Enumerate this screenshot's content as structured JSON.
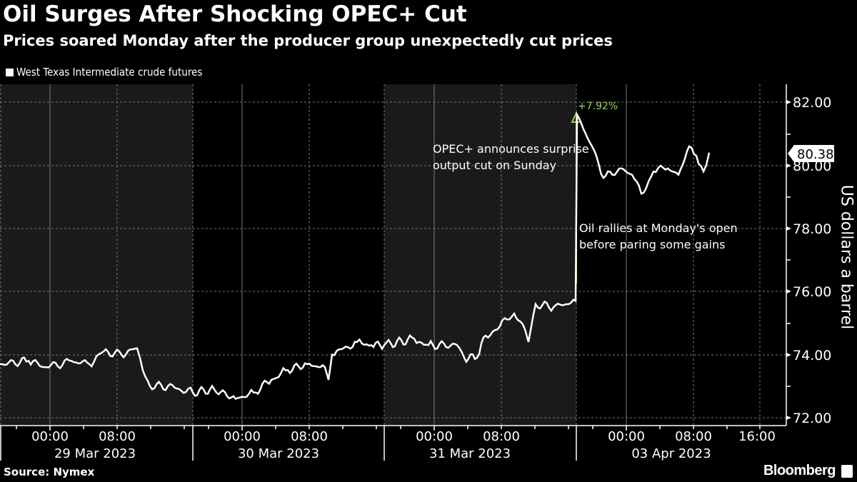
{
  "header": {
    "title": "Oil Surges After Shocking OPEC+ Cut",
    "subtitle": "Prices soared Monday after the producer group unexpectedly cut prices"
  },
  "legend": {
    "label": "West Texas Intermediate crude futures",
    "color": "#ffffff"
  },
  "footer": {
    "source": "Source: Nymex",
    "brand": "Bloomberg"
  },
  "annotations": {
    "opec": [
      "OPEC+ announces surprise",
      "output cut on Sunday"
    ],
    "rally": [
      "Oil rallies at Monday's open",
      "before paring some gains"
    ],
    "change": "+7.92%",
    "last_price": "80.38"
  },
  "colors": {
    "background": "#000000",
    "shaded_band": "#1a1a1a",
    "line": "#ffffff",
    "accent": "#9bd35a",
    "grid": "#666666"
  },
  "chart_data": {
    "type": "line",
    "title": "Oil Surges After Shocking OPEC+ Cut",
    "subtitle": "Prices soared Monday after the producer group unexpectedly cut prices",
    "xlabel": "",
    "ylabel": "US dollars a barrel",
    "ylim": [
      72,
      82
    ],
    "yticks": [
      "72.00",
      "74.00",
      "76.00",
      "78.00",
      "80.00",
      "82.00"
    ],
    "xticks": {
      "time_labels": [
        "00:00",
        "08:00",
        "00:00",
        "08:00",
        "00:00",
        "08:00",
        "00:00",
        "08:00",
        "16:00"
      ],
      "date_labels": [
        "29 Mar 2023",
        "30 Mar 2023",
        "31 Mar 2023",
        "03 Apr 2023"
      ]
    },
    "grid": true,
    "legend_position": "top-left",
    "series": [
      {
        "name": "West Texas Intermediate crude futures",
        "points": [
          {
            "t": "29 Mar 00:00-ish start",
            "x": 0,
            "y": 73.7
          },
          {
            "x": 40,
            "y": 73.8
          },
          {
            "x": 65,
            "y": 73.6
          },
          {
            "x": 100,
            "y": 73.8
          },
          {
            "x": 125,
            "y": 73.7
          },
          {
            "x": 145,
            "y": 74.1
          },
          {
            "x": 170,
            "y": 74.0
          },
          {
            "x": 192,
            "y": 74.2
          },
          {
            "x": 200,
            "y": 73.5
          },
          {
            "x": 210,
            "y": 73.0
          },
          {
            "x": 235,
            "y": 73.0
          },
          {
            "x": 270,
            "y": 72.8
          },
          {
            "x": 300,
            "y": 72.9
          },
          {
            "x": 330,
            "y": 72.6
          },
          {
            "x": 355,
            "y": 72.8
          },
          {
            "x": 380,
            "y": 73.2
          },
          {
            "x": 400,
            "y": 73.5
          },
          {
            "x": 430,
            "y": 73.7
          },
          {
            "x": 455,
            "y": 73.6
          },
          {
            "x": 460,
            "y": 73.2
          },
          {
            "x": 465,
            "y": 74.0
          },
          {
            "x": 500,
            "y": 74.4
          },
          {
            "x": 520,
            "y": 74.3
          },
          {
            "x": 538,
            "y": 74.3
          },
          {
            "x": 580,
            "y": 74.5
          },
          {
            "x": 600,
            "y": 74.3
          },
          {
            "x": 640,
            "y": 74.3
          },
          {
            "x": 650,
            "y": 73.9
          },
          {
            "x": 668,
            "y": 73.9
          },
          {
            "x": 680,
            "y": 74.6
          },
          {
            "x": 700,
            "y": 74.9
          },
          {
            "x": 720,
            "y": 75.3
          },
          {
            "x": 735,
            "y": 74.8
          },
          {
            "x": 740,
            "y": 74.4
          },
          {
            "x": 750,
            "y": 75.6
          },
          {
            "x": 775,
            "y": 75.5
          },
          {
            "x": 806,
            "y": 75.7
          },
          {
            "x": 808,
            "y": 81.6
          },
          {
            "x": 820,
            "y": 81.0
          },
          {
            "x": 835,
            "y": 80.3
          },
          {
            "x": 845,
            "y": 79.6
          },
          {
            "x": 870,
            "y": 79.9
          },
          {
            "x": 885,
            "y": 79.7
          },
          {
            "x": 898,
            "y": 79.1
          },
          {
            "x": 915,
            "y": 79.8
          },
          {
            "x": 935,
            "y": 79.9
          },
          {
            "x": 950,
            "y": 79.7
          },
          {
            "x": 965,
            "y": 80.6
          },
          {
            "x": 975,
            "y": 80.3
          },
          {
            "x": 985,
            "y": 79.8
          },
          {
            "x": 993,
            "y": 80.4
          }
        ]
      }
    ],
    "annotations": [
      {
        "text": "+7.92%",
        "color": "#9bd35a"
      },
      {
        "text": "OPEC+ announces surprise output cut on Sunday"
      },
      {
        "text": "Oil rallies at Monday's open before paring some gains"
      },
      {
        "text": "80.38",
        "type": "last-price-tag"
      }
    ]
  }
}
